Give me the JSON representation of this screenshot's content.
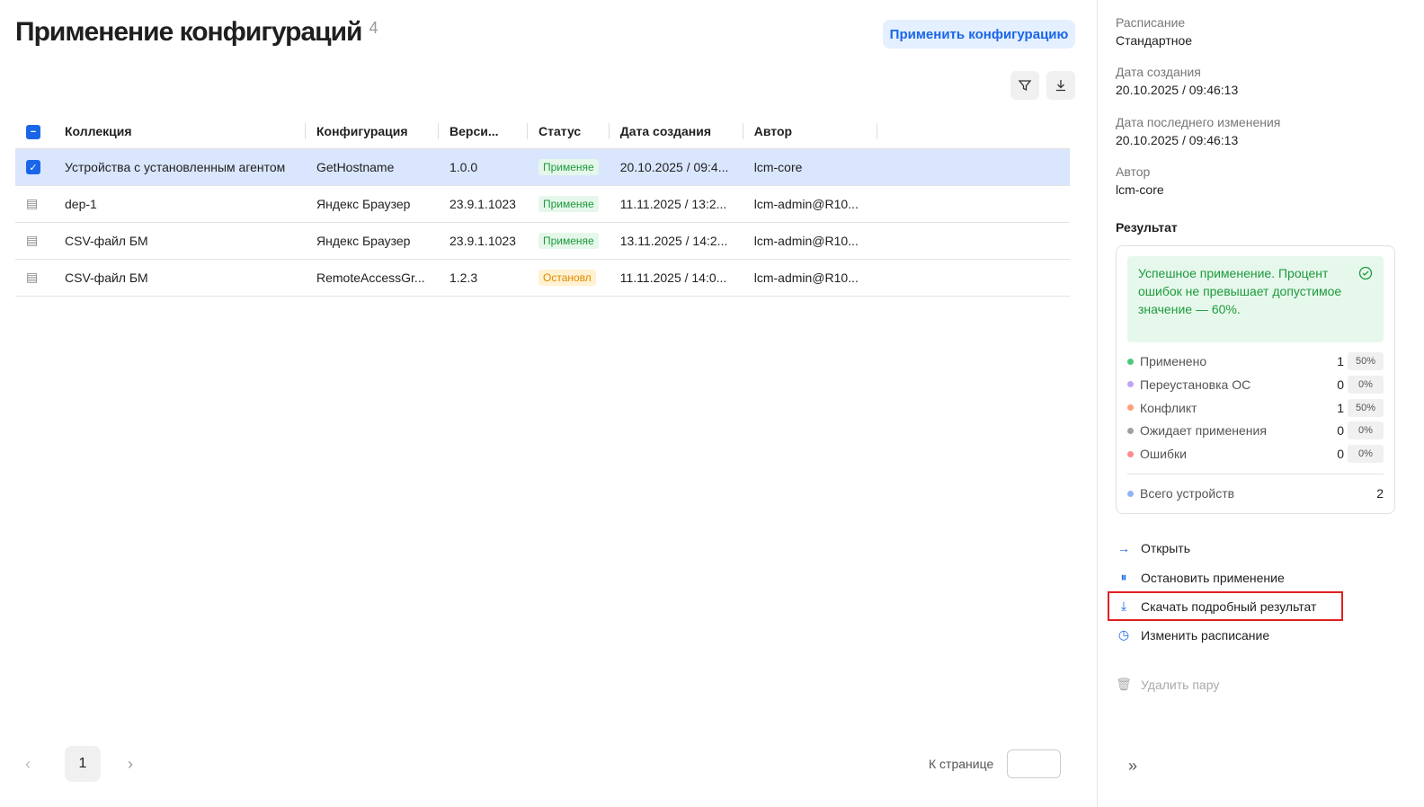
{
  "header": {
    "title": "Применение конфигураций",
    "count": "4",
    "apply_label": "Применить конфигурацию"
  },
  "table": {
    "columns": [
      "Коллекция",
      "Конфигурация",
      "Верси...",
      "Статус",
      "Дата создания",
      "Автор"
    ],
    "rows": [
      {
        "collection": "Устройства с установленным агентом",
        "config": "GetHostname",
        "version": "1.0.0",
        "status": "Применяе",
        "status_color": "green",
        "date": "20.10.2025 / 09:4...",
        "author": "lcm-core",
        "selected": true
      },
      {
        "collection": "dep-1",
        "config": "Яндекс Браузер",
        "version": "23.9.1.1023",
        "status": "Применяе",
        "status_color": "green",
        "date": "11.11.2025 / 13:2...",
        "author": "lcm-admin@R10..."
      },
      {
        "collection": "CSV-файл БМ",
        "config": "Яндекс Браузер",
        "version": "23.9.1.1023",
        "status": "Применяе",
        "status_color": "green",
        "date": "13.11.2025 / 14:2...",
        "author": "lcm-admin@R10..."
      },
      {
        "collection": "CSV-файл БМ",
        "config": "RemoteAccessGr...",
        "version": "1.2.3",
        "status": "Остановл",
        "status_color": "orange",
        "date": "11.11.2025 / 14:0...",
        "author": "lcm-admin@R10..."
      }
    ]
  },
  "pagination": {
    "page": "1",
    "goto_label": "К странице",
    "goto_value": ""
  },
  "side": {
    "schedule_label": "Расписание",
    "schedule": "Стандартное",
    "created_label": "Дата создания",
    "created": "20.10.2025 / 09:46:13",
    "modified_label": "Дата последнего изменения",
    "modified": "20.10.2025 / 09:46:13",
    "author_label": "Автор",
    "author": "lcm-core",
    "result_label": "Результат",
    "result_message": "Успешное применение. Процент ошибок не превышает допустимое значение — 60%.",
    "stats": [
      {
        "label": "Применено",
        "count": "1",
        "pct": "50%",
        "color": "#4cc97a"
      },
      {
        "label": "Переустановка ОС",
        "count": "0",
        "pct": "0%",
        "color": "#c3a3f5"
      },
      {
        "label": "Конфликт",
        "count": "1",
        "pct": "50%",
        "color": "#ff9f7a"
      },
      {
        "label": "Ожидает применения",
        "count": "0",
        "pct": "0%",
        "color": "#a0a0a0"
      },
      {
        "label": "Ошибки",
        "count": "0",
        "pct": "0%",
        "color": "#ff8a8a"
      }
    ],
    "total_label": "Всего устройств",
    "total": "2",
    "total_color": "#8fb4f5",
    "actions": {
      "open": "Открыть",
      "stop": "Остановить применение",
      "download": "Скачать подробный результат",
      "schedule": "Изменить расписание",
      "delete": "Удалить пару"
    }
  }
}
